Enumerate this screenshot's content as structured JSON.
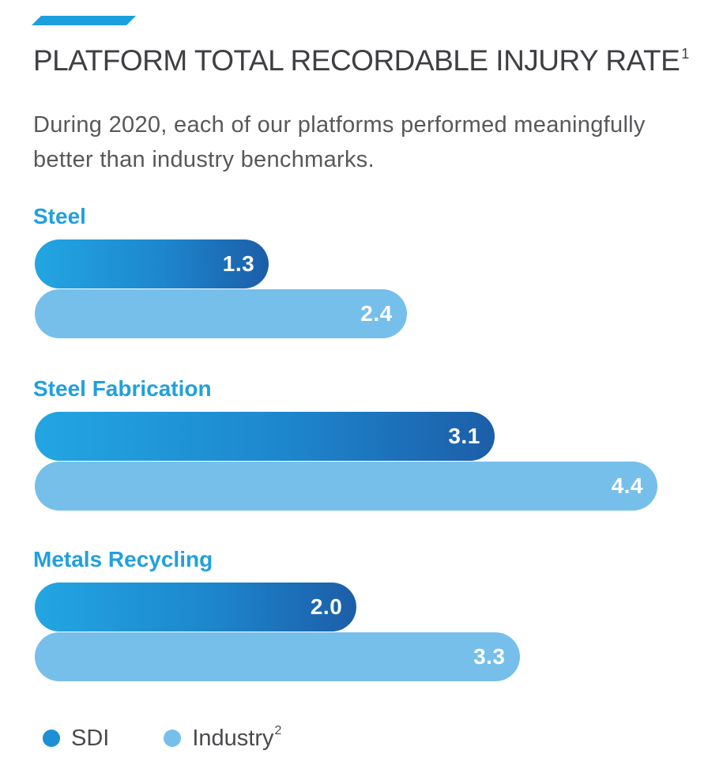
{
  "header": {
    "title": "PLATFORM TOTAL RECORDABLE INJURY RATE",
    "title_footnote": "1",
    "subtitle": "During 2020, each of our platforms performed meaningfully better than industry benchmarks."
  },
  "colors": {
    "accent": "#1aa0dd",
    "sdi": "#1c8fd6",
    "industry": "#76bfea",
    "group_label": "#21a0dc"
  },
  "chart_data": {
    "type": "bar",
    "orientation": "horizontal",
    "title": "PLATFORM TOTAL RECORDABLE INJURY RATE",
    "categories": [
      "Steel",
      "Steel Fabrication",
      "Metals Recycling"
    ],
    "series": [
      {
        "name": "SDI",
        "values": [
          1.3,
          3.1,
          2.0
        ],
        "labels": [
          "1.3",
          "3.1",
          "2.0"
        ]
      },
      {
        "name": "Industry",
        "values": [
          2.4,
          4.4,
          3.3
        ],
        "labels": [
          "2.4",
          "4.4",
          "3.3"
        ]
      }
    ],
    "xlim": [
      0,
      4.4
    ],
    "grid": false,
    "legend": {
      "placement": "bottom-left",
      "items": [
        {
          "label": "SDI",
          "footnote": ""
        },
        {
          "label": "Industry",
          "footnote": "2"
        }
      ]
    }
  }
}
